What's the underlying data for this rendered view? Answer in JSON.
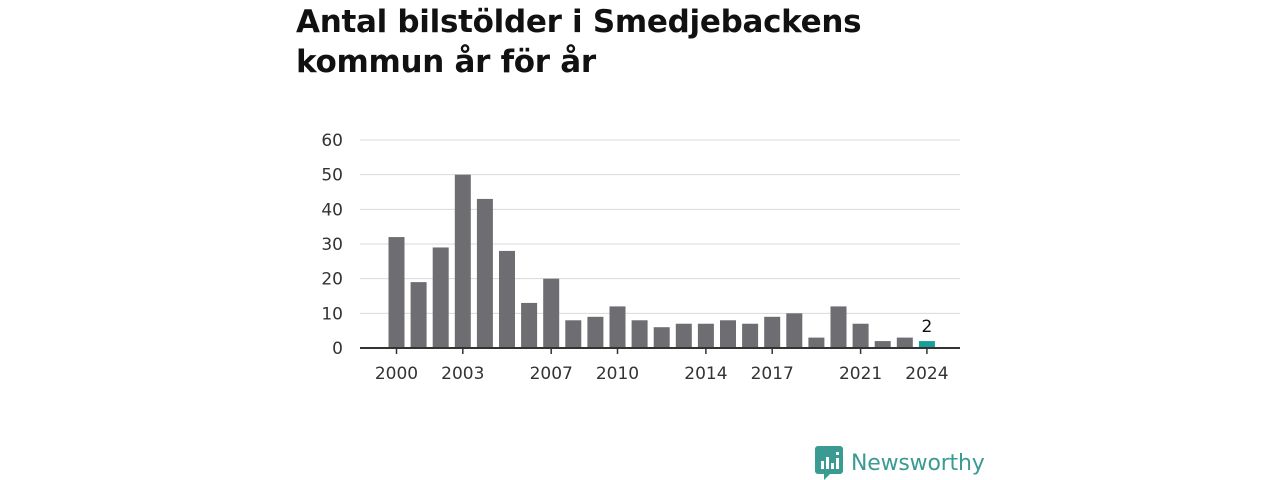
{
  "title_lines": [
    "Antal bilstölder i Smedjebackens",
    "kommun år för år"
  ],
  "brand": {
    "name": "Newsworthy",
    "icon": "newsworthy-logo-icon"
  },
  "colors": {
    "bar": "#6e6d72",
    "highlight": "#1a9e98",
    "grid": "#d9d9d9",
    "axis": "#333333",
    "brand": "#3a9b93"
  },
  "chart_data": {
    "type": "bar",
    "title": "Antal bilstölder i Smedjebackens kommun år för år",
    "xlabel": "",
    "ylabel": "",
    "categories": [
      2000,
      2001,
      2002,
      2003,
      2004,
      2005,
      2006,
      2007,
      2008,
      2009,
      2010,
      2011,
      2012,
      2013,
      2014,
      2015,
      2016,
      2017,
      2018,
      2019,
      2020,
      2021,
      2022,
      2023,
      2024
    ],
    "values": [
      32,
      19,
      29,
      50,
      43,
      28,
      13,
      20,
      8,
      9,
      12,
      8,
      6,
      7,
      7,
      8,
      7,
      9,
      10,
      3,
      12,
      7,
      2,
      3,
      2
    ],
    "x_tick_labels": [
      "2000",
      "2003",
      "2007",
      "2010",
      "2014",
      "2017",
      "2021",
      "2024"
    ],
    "y_ticks": [
      0,
      10,
      20,
      30,
      40,
      50,
      60
    ],
    "ylim": [
      0,
      60
    ],
    "grid": true,
    "highlight": {
      "category": 2024,
      "label": "2"
    }
  }
}
